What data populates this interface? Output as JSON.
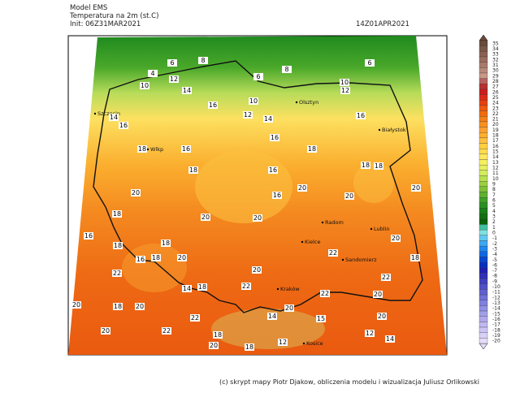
{
  "header": {
    "model": "Model EMS",
    "variable": "Temperatura na 2m (st.C)",
    "init": "Init: 06Z31MAR2021",
    "valid": "14Z01APR2021"
  },
  "colorbar": {
    "levels": [
      35,
      34,
      33,
      32,
      31,
      30,
      29,
      28,
      27,
      26,
      25,
      24,
      23,
      22,
      21,
      20,
      19,
      18,
      17,
      16,
      15,
      14,
      13,
      12,
      11,
      10,
      9,
      8,
      7,
      6,
      5,
      4,
      3,
      2,
      1,
      0,
      -1,
      -2,
      -3,
      -4,
      -5,
      -6,
      -7,
      -8,
      -9,
      -10,
      -11,
      -12,
      -13,
      -14,
      -15,
      -16,
      -17,
      -18,
      -19,
      -20
    ],
    "colors": [
      "#6b4a3a",
      "#7a5646",
      "#8a6252",
      "#9a6e5e",
      "#a87a6a",
      "#b88a7a",
      "#c89888",
      "#b86060",
      "#b83030",
      "#c81e1e",
      "#dc2a1a",
      "#e84010",
      "#ee5a10",
      "#f06c10",
      "#f48018",
      "#f89020",
      "#fba030",
      "#fdb030",
      "#fec040",
      "#ffcf40",
      "#ffdd50",
      "#ffe860",
      "#f4ef60",
      "#e6f060",
      "#d4ec60",
      "#b8e050",
      "#9cd040",
      "#80c038",
      "#60b030",
      "#40a028",
      "#289020",
      "#188018",
      "#107010",
      "#086008",
      "#40c0a0",
      "#80e0e0",
      "#60c8f0",
      "#40a8f0",
      "#2088f0",
      "#1068e0",
      "#0848d0",
      "#0830c0",
      "#2020b0",
      "#3030b8",
      "#4040c0",
      "#5050c8",
      "#6060d0",
      "#7070d8",
      "#8080e0",
      "#9090e4",
      "#a0a0e8",
      "#b0a8ec",
      "#c0b8f0",
      "#ccc4f4",
      "#d8d0f6",
      "#e4dcf8"
    ]
  },
  "places": [
    "Szczecin",
    "Olsztyn",
    "Białystok",
    "Wlkp",
    "Radom",
    "Lublin",
    "Kielce",
    "Sandomierz",
    "Kraków",
    "Kosice"
  ],
  "contour_labels": [
    6,
    4,
    8,
    6,
    8,
    6,
    10,
    12,
    14,
    10,
    12,
    10,
    12,
    14,
    16,
    14,
    16,
    16,
    18,
    16,
    16,
    18,
    18,
    18,
    16,
    18,
    20,
    16,
    20,
    20,
    20,
    18,
    20,
    20,
    16,
    20,
    18,
    18,
    16,
    18,
    20,
    20,
    22,
    18,
    22,
    22,
    14,
    18,
    22,
    22,
    20,
    20,
    22,
    20,
    15,
    20,
    18,
    20,
    22,
    18,
    14,
    20,
    12,
    12,
    20,
    18,
    14
  ],
  "footer": "(c) skrypt mapy Piotr Djakow, obliczenia modelu i wizualizacja Juliusz Orlikowski"
}
